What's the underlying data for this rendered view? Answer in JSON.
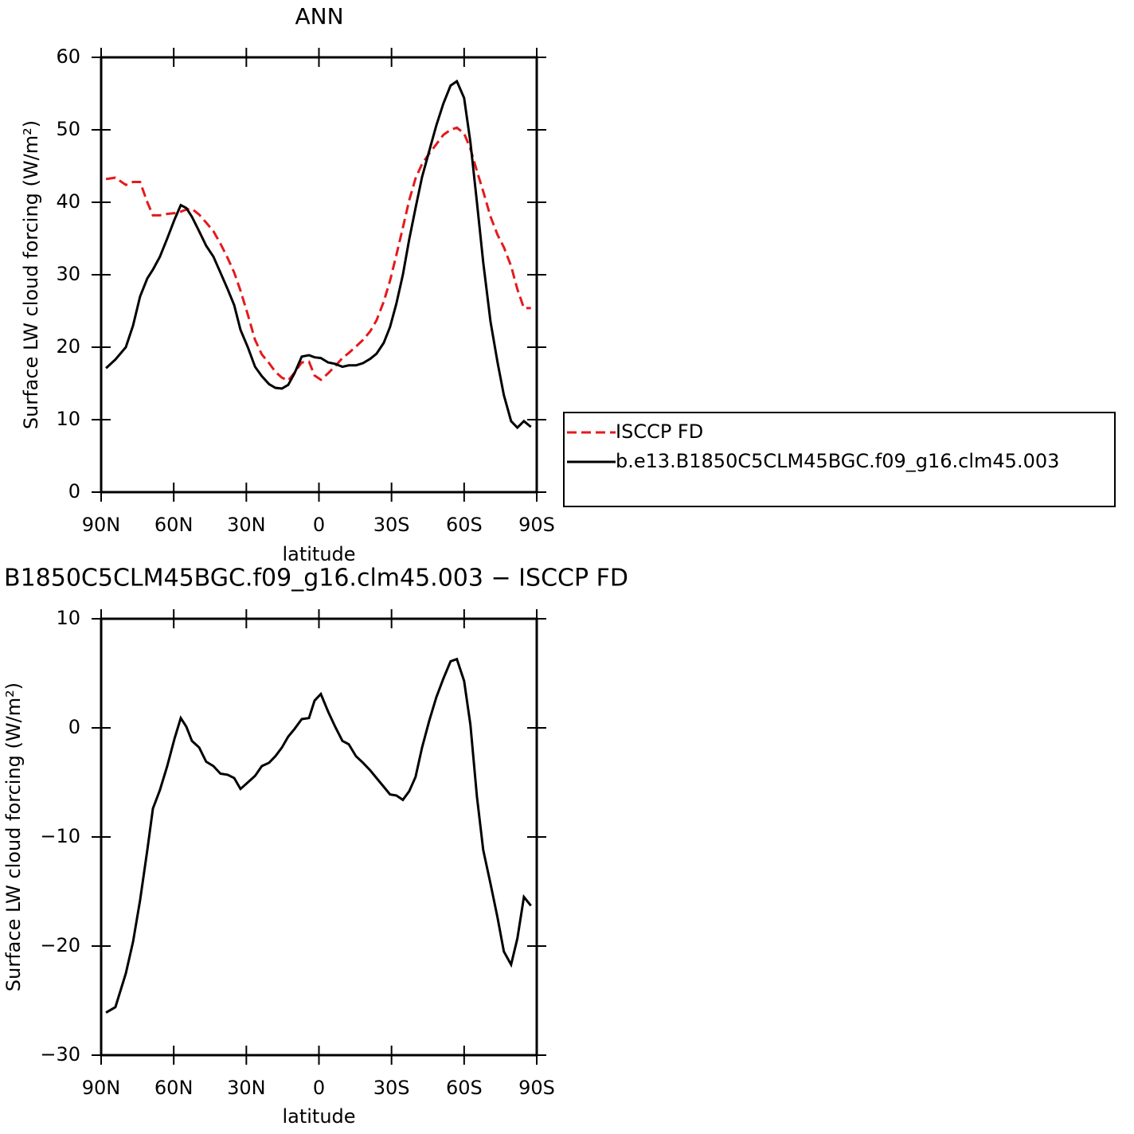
{
  "chart_data": [
    {
      "type": "line",
      "title": "ANN",
      "xlabel": "latitude",
      "ylabel": "Surface LW cloud forcing (W/m²)",
      "x": [
        88.0,
        84.1,
        79.8,
        76.8,
        73.9,
        70.9,
        68.6,
        65.7,
        62.7,
        59.7,
        57.1,
        54.8,
        52.5,
        49.5,
        46.6,
        43.6,
        40.7,
        37.7,
        35.0,
        32.4,
        29.4,
        26.4,
        23.6,
        20.6,
        18.0,
        15.3,
        12.7,
        10.1,
        7.1,
        4.1,
        1.8,
        -0.8,
        -3.8,
        -6.7,
        -9.7,
        -12.3,
        -15.3,
        -18.2,
        -21.2,
        -23.8,
        -26.8,
        -29.4,
        -32.0,
        -34.7,
        -37.3,
        -39.9,
        -42.6,
        -45.5,
        -48.5,
        -51.4,
        -54.4,
        -57.0,
        -60.0,
        -62.6,
        -65.3,
        -67.9,
        -70.9,
        -73.8,
        -76.4,
        -79.4,
        -82.0,
        -84.7,
        -87.6
      ],
      "series": [
        {
          "name": "ISCCP FD",
          "color": "#e41a1c",
          "style": "dashed",
          "values": [
            43.2,
            43.4,
            42.4,
            42.8,
            42.8,
            40,
            38.2,
            38.2,
            38.4,
            38.5,
            38.7,
            39,
            39.1,
            38.3,
            37.2,
            36,
            34.3,
            32.3,
            30.3,
            27.8,
            24.5,
            21,
            19,
            17.8,
            16.6,
            15.8,
            15.4,
            16.5,
            17.9,
            18,
            16.1,
            15.5,
            16.4,
            17.4,
            18.5,
            19.2,
            20.1,
            21,
            22.2,
            23.7,
            26.3,
            29.2,
            32.7,
            36.5,
            40.3,
            43.3,
            45.3,
            46.7,
            48,
            49.3,
            50,
            50.3,
            49.5,
            47.4,
            44.3,
            41.5,
            38,
            35.5,
            33.8,
            31.2,
            28,
            25.4,
            25.4
          ]
        },
        {
          "name": "b.e13.B1850C5CLM45BGC.f09_g16.clm45.003",
          "color": "#000000",
          "style": "solid",
          "values": [
            17.1,
            18.3,
            20,
            23,
            27,
            29.5,
            30.7,
            32.5,
            35,
            37.6,
            39.6,
            39.2,
            38,
            36,
            34,
            32.5,
            30.3,
            28,
            25.8,
            22.4,
            20,
            17.3,
            16,
            14.9,
            14.4,
            14.3,
            14.8,
            16.4,
            18.7,
            18.9,
            18.6,
            18.5,
            17.9,
            17.7,
            17.3,
            17.5,
            17.5,
            17.8,
            18.4,
            19.1,
            20.6,
            22.8,
            26,
            30,
            34.9,
            39.2,
            43.5,
            47,
            50.6,
            53.6,
            56.1,
            56.7,
            54.4,
            48.3,
            40,
            31.7,
            23.5,
            17.9,
            13.4,
            9.8,
            8.9,
            9.8,
            9
          ]
        }
      ],
      "xlim": [
        90,
        -90
      ],
      "xticks": [
        {
          "value": 90,
          "label": "90N"
        },
        {
          "value": 60,
          "label": "60N"
        },
        {
          "value": 30,
          "label": "30N"
        },
        0,
        {
          "value": -30,
          "label": "30S"
        },
        {
          "value": -60,
          "label": "60S"
        },
        {
          "value": -90,
          "label": "90S"
        }
      ],
      "ylim": [
        0,
        60
      ],
      "yticks": [
        0,
        10,
        20,
        30,
        40,
        50,
        60
      ],
      "legend": "right"
    },
    {
      "type": "line",
      "title": "B1850C5CLM45BGC.f09_g16.clm45.003 − ISCCP FD",
      "xlabel": "latitude",
      "ylabel": "Surface LW cloud forcing (W/m²)",
      "x": [
        88.0,
        84.1,
        79.8,
        76.8,
        73.9,
        70.9,
        68.6,
        65.7,
        62.7,
        59.7,
        57.1,
        54.8,
        52.5,
        49.5,
        46.6,
        43.6,
        40.7,
        37.7,
        35.0,
        32.4,
        29.4,
        26.4,
        23.6,
        20.6,
        18.0,
        15.3,
        12.7,
        10.1,
        7.1,
        4.1,
        1.8,
        -0.8,
        -3.8,
        -6.7,
        -9.7,
        -12.3,
        -15.3,
        -18.2,
        -21.2,
        -23.8,
        -26.8,
        -29.4,
        -32.0,
        -34.7,
        -37.3,
        -39.9,
        -42.6,
        -45.5,
        -48.5,
        -51.4,
        -54.4,
        -57.0,
        -60.0,
        -62.6,
        -65.3,
        -67.9,
        -70.9,
        -73.8,
        -76.4,
        -79.4,
        -82.0,
        -84.7,
        -87.6
      ],
      "series": [
        {
          "color": "#000000",
          "style": "solid",
          "values": [
            -26.1,
            -25.6,
            -22.5,
            -19.6,
            -15.8,
            -11.2,
            -7.4,
            -5.7,
            -3.5,
            -1.0,
            0.9,
            0.1,
            -1.2,
            -1.8,
            -3.1,
            -3.5,
            -4.2,
            -4.3,
            -4.6,
            -5.6,
            -5.0,
            -4.4,
            -3.5,
            -3.2,
            -2.6,
            -1.8,
            -0.8,
            -0.1,
            0.8,
            0.9,
            2.5,
            3.1,
            1.5,
            0.1,
            -1.2,
            -1.5,
            -2.6,
            -3.2,
            -3.9,
            -4.6,
            -5.4,
            -6.1,
            -6.2,
            -6.6,
            -5.8,
            -4.5,
            -1.8,
            0.6,
            2.8,
            4.5,
            6.1,
            6.3,
            4.3,
            0.3,
            -6.3,
            -11.2,
            -14.3,
            -17.4,
            -20.5,
            -21.7,
            -19.3,
            -15.5,
            -16.3
          ]
        }
      ],
      "xlim": [
        90,
        -90
      ],
      "xticks": [
        {
          "value": 90,
          "label": "90N"
        },
        {
          "value": 60,
          "label": "60N"
        },
        {
          "value": 30,
          "label": "30N"
        },
        0,
        {
          "value": -30,
          "label": "30S"
        },
        {
          "value": -60,
          "label": "60S"
        },
        {
          "value": -90,
          "label": "90S"
        }
      ],
      "ylim": [
        -30,
        10
      ],
      "yticks": [
        {
          "value": -30,
          "label": "−30"
        },
        {
          "value": -20,
          "label": "−20"
        },
        {
          "value": -10,
          "label": "−10"
        },
        0,
        10
      ]
    }
  ]
}
